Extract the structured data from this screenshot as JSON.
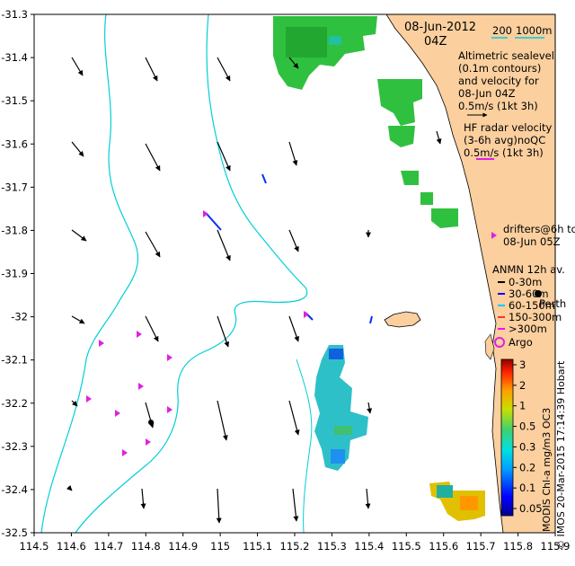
{
  "map": {
    "date": "08-Jun-2012",
    "time": "04Z",
    "scale_label_200": "200",
    "scale_label_1000": "1000m",
    "x_ticks": [
      "114.5",
      "114.6",
      "114.7",
      "114.8",
      "114.9",
      "115",
      "115.1",
      "115.2",
      "115.3",
      "115.4",
      "115.5",
      "115.6",
      "115.7",
      "115.8",
      "115.9"
    ],
    "y_ticks": [
      "-31.3",
      "-31.4",
      "-31.5",
      "-31.6",
      "-31.7",
      "-31.8",
      "-31.9",
      "-32",
      "-32.1",
      "-32.2",
      "-32.3",
      "-32.4",
      "-32.5"
    ]
  },
  "legend": {
    "altimetric": [
      "Altimetric sealevel",
      "(0.1m contours)",
      "and velocity for",
      "08-Jun 04Z",
      "0.5m/s (1kt 3h)"
    ],
    "hf_radar": [
      "HF radar velocity",
      "(3-6h avg)noQC",
      "0.5m/s (1kt 3h)"
    ],
    "drifters": [
      "drifters@6h to",
      "08-Jun 05Z"
    ],
    "anmn_title": "ANMN 12h av.",
    "anmn_items": [
      "0-30m",
      "30-60m",
      "60-150m",
      "150-300m",
      ">300m"
    ],
    "anmn_colors": [
      "#000000",
      "#0000ff",
      "#00c8ff",
      "#ff3030",
      "#ff00ff"
    ],
    "city": "Perth",
    "argo": "Argo"
  },
  "colorbar": {
    "ticks": [
      "3",
      "2",
      "1",
      "0.5",
      "0.3",
      "0.2",
      "0.1",
      "0.05"
    ],
    "label": "MODIS Chl-a mg/m3 OC3"
  },
  "credit": "© IMOS 20-Mar-2015 17:14:39 Hobart",
  "colors": {
    "land": "#fbcf9e",
    "isobath": "#00cfd8",
    "drifter": "#e020e0",
    "hf_radar": "#0030ff"
  }
}
